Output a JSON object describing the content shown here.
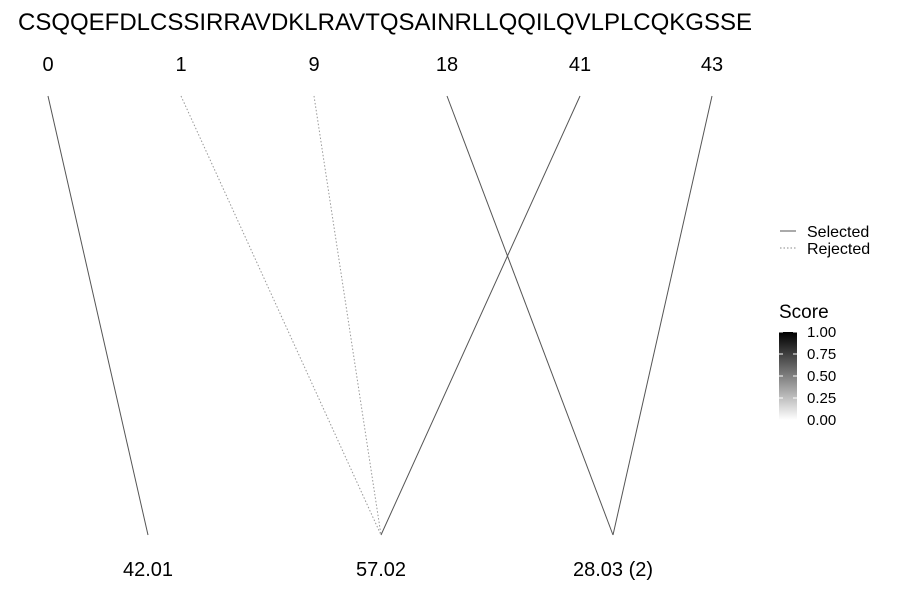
{
  "sequence": "CSQQEFDLCSSIRRAVDKLRAVTQSAINRLLQQILQVLPLCQKGSSE",
  "positions": [
    "0",
    "1",
    "9",
    "18",
    "41",
    "43"
  ],
  "masses": [
    "42.01",
    "57.02",
    "28.03 (2)"
  ],
  "links": [
    {
      "from": 0,
      "to": 0,
      "status": "selected"
    },
    {
      "from": 1,
      "to": 1,
      "status": "rejected"
    },
    {
      "from": 2,
      "to": 1,
      "status": "rejected"
    },
    {
      "from": 3,
      "to": 2,
      "status": "selected"
    },
    {
      "from": 4,
      "to": 1,
      "status": "selected"
    },
    {
      "from": 5,
      "to": 2,
      "status": "selected"
    }
  ],
  "legend": {
    "selected_label": "Selected",
    "rejected_label": "Rejected"
  },
  "score_legend": {
    "title": "Score",
    "ticks": [
      "1.00",
      "0.75",
      "0.50",
      "0.25",
      "0.00"
    ],
    "color_high": "#000000",
    "color_low": "#ffffff"
  },
  "colors": {
    "selected_line": "#555555",
    "rejected_line": "#999999"
  }
}
